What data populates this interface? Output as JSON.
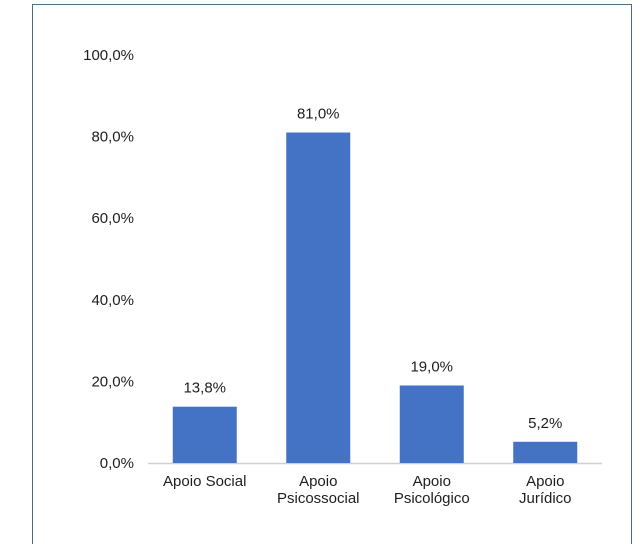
{
  "chart_data": {
    "type": "bar",
    "categories": [
      [
        "Apoio Social"
      ],
      [
        "Apoio",
        "Psicossocial"
      ],
      [
        "Apoio",
        "Psicológico"
      ],
      [
        "Apoio",
        "Jurídico"
      ]
    ],
    "values": [
      13.8,
      81.0,
      19.0,
      5.2
    ],
    "value_labels": [
      "13,8%",
      "81,0%",
      "19,0%",
      "5,2%"
    ],
    "y_ticks": [
      "0,0%",
      "20,0%",
      "40,0%",
      "60,0%",
      "80,0%",
      "100,0%"
    ],
    "y_tick_values": [
      0,
      20,
      40,
      60,
      80,
      100
    ],
    "ylim": [
      0,
      100
    ],
    "grid": false,
    "legend": "none",
    "bar_color": "#4472c4",
    "title": "",
    "xlabel": "",
    "ylabel": ""
  }
}
